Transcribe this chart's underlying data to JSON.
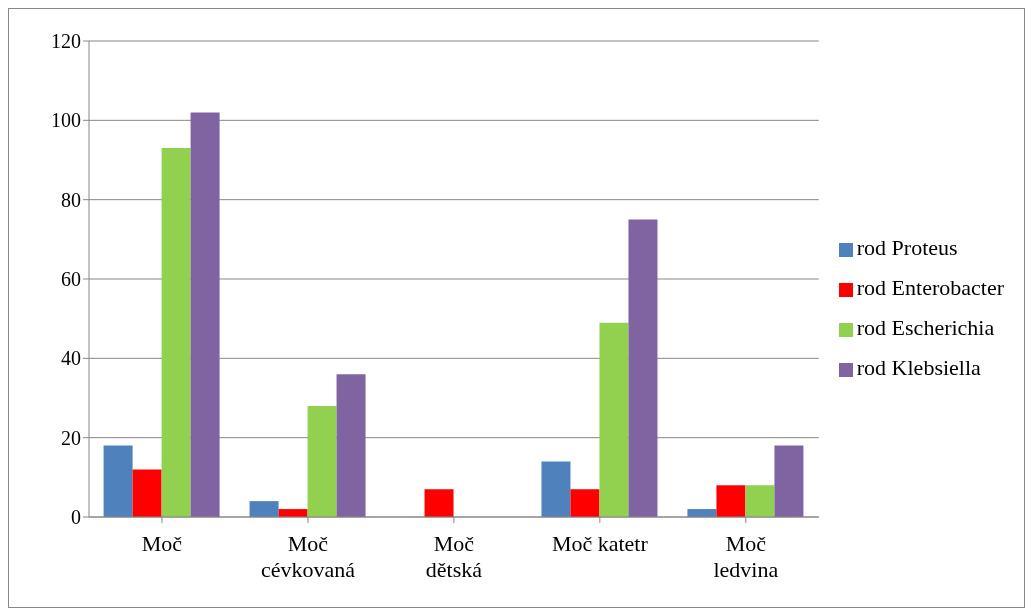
{
  "chart_data": {
    "type": "bar",
    "categories": [
      "Moč",
      "Moč\ncévkovaná",
      "Moč\ndětská",
      "Moč katetr",
      "Moč\nledvina"
    ],
    "series": [
      {
        "name": "rod Proteus",
        "color": "#4f81bd",
        "values": [
          18,
          4,
          0,
          14,
          2
        ]
      },
      {
        "name": "rod Enterobacter",
        "color": "#ff0000",
        "values": [
          12,
          2,
          7,
          7,
          8
        ]
      },
      {
        "name": "rod Escherichia",
        "color": "#92d050",
        "values": [
          93,
          28,
          0,
          49,
          8
        ]
      },
      {
        "name": "rod Klebsiella",
        "color": "#8064a2",
        "values": [
          102,
          36,
          0,
          75,
          18
        ]
      }
    ],
    "ylim": [
      0,
      120
    ],
    "yticks": [
      0,
      20,
      40,
      60,
      80,
      100,
      120
    ],
    "grid": "y",
    "legend": "right"
  }
}
